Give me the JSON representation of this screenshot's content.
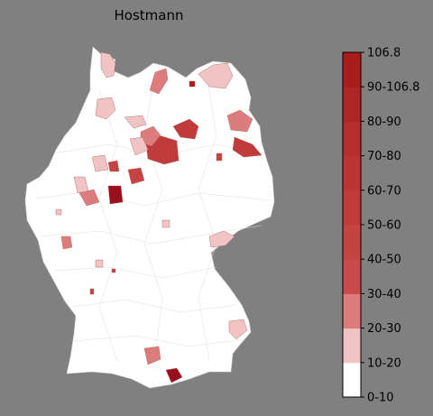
{
  "title": "Hostmann",
  "legend": {
    "bins": [
      {
        "label": "0-10",
        "color": "#ffffff"
      },
      {
        "label": "10-20",
        "color": "#f0c4c4"
      },
      {
        "label": "20-30",
        "color": "#dc7c7c"
      },
      {
        "label": "30-40",
        "color": "#c94a4a"
      },
      {
        "label": "40-50",
        "color": "#c44444"
      },
      {
        "label": "50-60",
        "color": "#c03c3c"
      },
      {
        "label": "60-70",
        "color": "#bb3535"
      },
      {
        "label": "70-80",
        "color": "#b62e2e"
      },
      {
        "label": "80-90",
        "color": "#b02626"
      },
      {
        "label": "90-106.8",
        "color": "#a81c1c"
      },
      {
        "label": "106.8",
        "color": "#9a0f1e"
      }
    ]
  },
  "colors": {
    "background": "#808080",
    "land": "#ffffff",
    "border": "#c8c8c8"
  }
}
